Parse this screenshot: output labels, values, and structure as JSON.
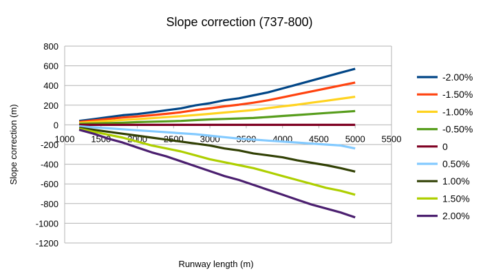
{
  "chart_data": {
    "type": "line",
    "title": "Slope correction (737-800)",
    "xlabel": "Runway length (m)",
    "ylabel": "Slope correction (m)",
    "xlim": [
      1000,
      5500
    ],
    "ylim": [
      -1200,
      800
    ],
    "xticks": [
      1000,
      1500,
      2000,
      2500,
      3000,
      3500,
      4000,
      4500,
      5000,
      5500
    ],
    "yticks": [
      800,
      600,
      400,
      200,
      0,
      -200,
      -400,
      -600,
      -800,
      -1000,
      -1200
    ],
    "grid": "horizontal",
    "legend": "right",
    "x": [
      1200,
      1400,
      1600,
      1800,
      2000,
      2200,
      2400,
      2600,
      2800,
      3000,
      3200,
      3400,
      3600,
      3800,
      4000,
      4200,
      4400,
      4600,
      4800,
      5000
    ],
    "series": [
      {
        "name": "-2.00%",
        "color": "#004586",
        "values": [
          40,
          58,
          78,
          98,
          110,
          128,
          148,
          168,
          198,
          220,
          250,
          270,
          300,
          330,
          370,
          410,
          450,
          490,
          530,
          570
        ]
      },
      {
        "name": "-1.50%",
        "color": "#ff420e",
        "values": [
          30,
          45,
          60,
          75,
          85,
          98,
          112,
          128,
          150,
          168,
          188,
          205,
          225,
          250,
          280,
          310,
          340,
          370,
          400,
          430
        ]
      },
      {
        "name": "-1.00%",
        "color": "#ffd320",
        "values": [
          20,
          30,
          40,
          50,
          58,
          68,
          78,
          88,
          100,
          112,
          125,
          138,
          150,
          170,
          188,
          205,
          225,
          245,
          265,
          285
        ]
      },
      {
        "name": "-0.50%",
        "color": "#579d1c",
        "values": [
          10,
          14,
          18,
          22,
          28,
          32,
          36,
          40,
          48,
          55,
          60,
          65,
          70,
          80,
          90,
          100,
          110,
          120,
          130,
          140
        ]
      },
      {
        "name": "0",
        "color": "#7e0021",
        "values": [
          0,
          0,
          0,
          0,
          0,
          0,
          0,
          0,
          0,
          0,
          0,
          0,
          0,
          0,
          0,
          0,
          0,
          0,
          0,
          0
        ]
      },
      {
        "name": "0.50%",
        "color": "#83caff",
        "values": [
          -15,
          -25,
          -35,
          -45,
          -55,
          -65,
          -75,
          -85,
          -95,
          -110,
          -125,
          -140,
          -150,
          -160,
          -170,
          -180,
          -190,
          -200,
          -210,
          -240
        ]
      },
      {
        "name": "1.00%",
        "color": "#314004",
        "values": [
          -30,
          -50,
          -70,
          -90,
          -110,
          -130,
          -150,
          -170,
          -190,
          -210,
          -240,
          -260,
          -290,
          -310,
          -330,
          -360,
          -385,
          -410,
          -440,
          -475
        ]
      },
      {
        "name": "1.50%",
        "color": "#aecf00",
        "values": [
          -40,
          -70,
          -100,
          -130,
          -170,
          -210,
          -240,
          -270,
          -310,
          -350,
          -380,
          -410,
          -440,
          -480,
          -520,
          -560,
          -600,
          -640,
          -670,
          -710
        ]
      },
      {
        "name": "2.00%",
        "color": "#4b1f6f",
        "values": [
          -50,
          -90,
          -140,
          -180,
          -230,
          -280,
          -320,
          -370,
          -420,
          -470,
          -520,
          -560,
          -610,
          -660,
          -710,
          -760,
          -810,
          -850,
          -890,
          -940
        ]
      }
    ]
  }
}
